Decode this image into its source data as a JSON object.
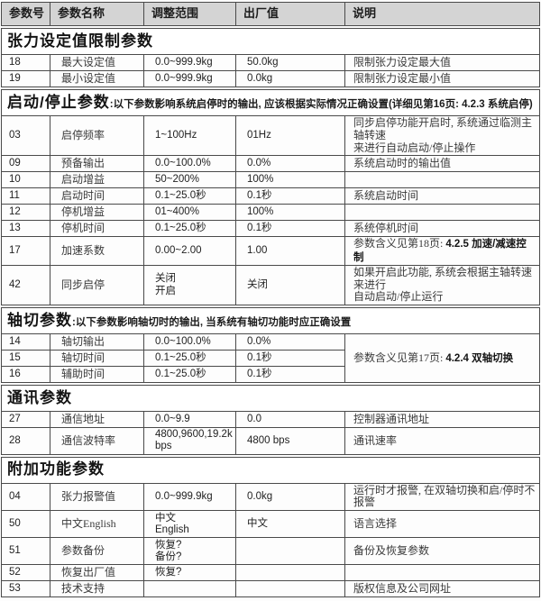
{
  "table": {
    "columns": [
      "参数号",
      "参数名称",
      "调整范围",
      "出厂值",
      "说明"
    ]
  },
  "sections": [
    {
      "title": "张力设定值限制参数",
      "note": "",
      "rows": [
        {
          "id": "18",
          "name": "最大设定值",
          "range": "0.0~999.9kg",
          "default": "50.0kg",
          "desc": "限制张力设定最大值"
        },
        {
          "id": "19",
          "name": "最小设定值",
          "range": "0.0~999.9kg",
          "default": "0.0kg",
          "desc": "限制张力设定最小值"
        }
      ]
    },
    {
      "title": "启动/停止参数",
      "note": ":以下参数影响系统启停时的输出, 应该根据实际情况正确设置(详细见第16页: 4.2.3 系统启停)",
      "rows": [
        {
          "id": "03",
          "name": "启停频率",
          "range": "1~100Hz",
          "default": "01Hz",
          "desc": "同步启停功能开启时, 系统通过临测主轴转速\n来进行自动启动/停止操作"
        },
        {
          "id": "09",
          "name": "预备输出",
          "range": "0.0~100.0%",
          "default": "0.0%",
          "desc": "系统启动时的输出值"
        },
        {
          "id": "10",
          "name": "启动增益",
          "range": "50~200%",
          "default": "100%",
          "desc": ""
        },
        {
          "id": "11",
          "name": "启动时间",
          "range": "0.1~25.0秒",
          "default": "0.1秒",
          "desc": "系统启动时间"
        },
        {
          "id": "12",
          "name": "停机增益",
          "range": "01~400%",
          "default": "100%",
          "desc": ""
        },
        {
          "id": "13",
          "name": "停机时间",
          "range": "0.1~25.0秒",
          "default": "0.1秒",
          "desc": "系统停机时间"
        },
        {
          "id": "17",
          "name": "加速系数",
          "range": "0.00~2.00",
          "default": "1.00",
          "desc": "参数含义见第18页: ",
          "desc_bold": "4.2.5 加速/减速控制"
        },
        {
          "id": "42",
          "name": "同步启停",
          "range": "关闭\n开启",
          "default": "关闭",
          "desc": "如果开启此功能, 系统会根据主轴转速来进行\n自动启动/停止运行"
        }
      ]
    },
    {
      "title": "轴切参数",
      "note": ":以下参数影响轴切时的输出, 当系统有轴切功能时应正确设置",
      "merged_desc": "参数含义见第17页: ",
      "merged_desc_bold": "4.2.4 双轴切换",
      "rows": [
        {
          "id": "14",
          "name": "轴切输出",
          "range": "0.0~100.0%",
          "default": "0.0%"
        },
        {
          "id": "15",
          "name": "轴切时间",
          "range": "0.1~25.0秒",
          "default": "0.1秒"
        },
        {
          "id": "16",
          "name": "辅助时间",
          "range": "0.1~25.0秒",
          "default": "0.1秒"
        }
      ]
    },
    {
      "title": "通讯参数",
      "note": "",
      "rows": [
        {
          "id": "27",
          "name": "通信地址",
          "range": "0.0~9.9",
          "default": "0.0",
          "desc": "控制器通讯地址"
        },
        {
          "id": "28",
          "name": "通信波特率",
          "range": "4800,9600,19.2k bps",
          "default": "4800  bps",
          "desc": "通讯速率"
        }
      ]
    },
    {
      "title": "附加功能参数",
      "note": "",
      "rows": [
        {
          "id": "04",
          "name": "张力报警值",
          "range": "0.0~999.9kg",
          "default": "0.0kg",
          "desc": "运行时才报警, 在双轴切换和启/停时不报警"
        },
        {
          "id": "50",
          "name": "中文English",
          "range": "中文\nEnglish",
          "default": "中文",
          "desc": "语言选择"
        },
        {
          "id": "51",
          "name": "参数备份",
          "range": "恢复?\n备份?",
          "default": "",
          "desc": "备份及恢复参数"
        },
        {
          "id": "52",
          "name": "恢复出厂值",
          "range": "恢复?",
          "default": "",
          "desc": ""
        },
        {
          "id": "53",
          "name": "技术支持",
          "range": "",
          "default": "",
          "desc": "版权信息及公司网址"
        }
      ]
    }
  ]
}
